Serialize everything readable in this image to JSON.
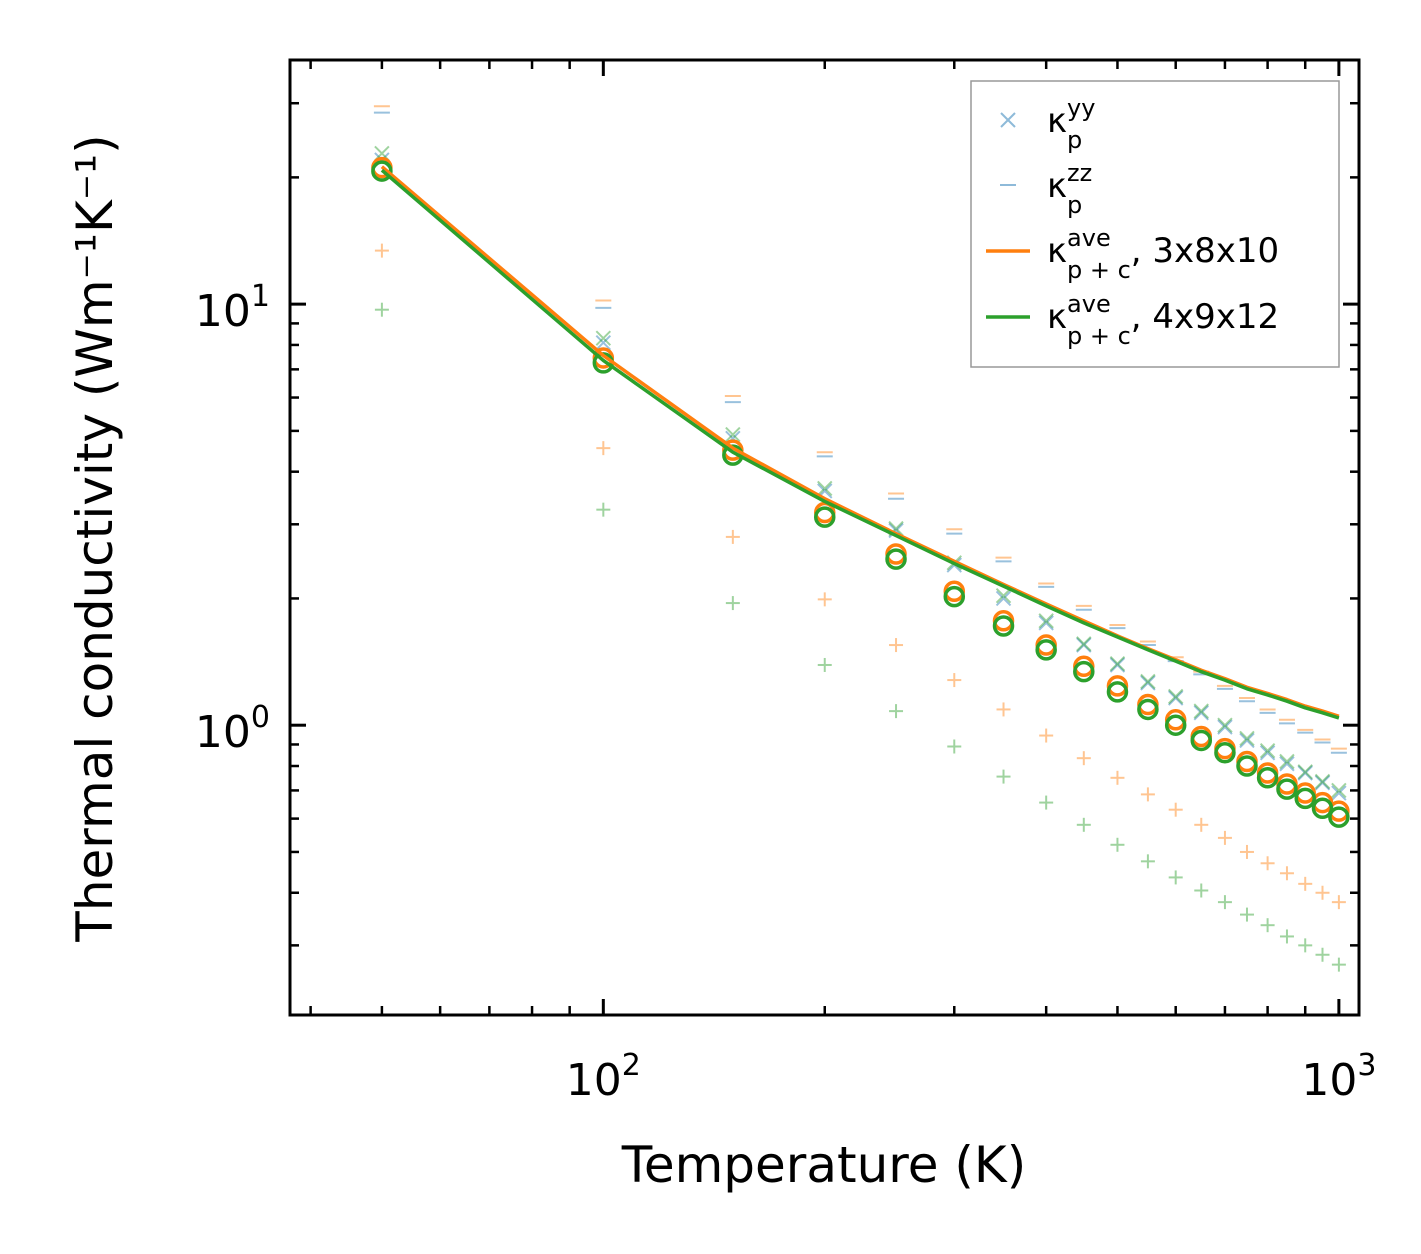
{
  "chart_data": {
    "type": "scatter",
    "title": "",
    "xlabel": "Temperature (K)",
    "ylabel": "Thermal conductivity (Wm⁻¹K⁻¹)",
    "xscale": "log",
    "yscale": "log",
    "xlim": [
      37.5,
      1065
    ],
    "ylim": [
      0.205,
      38
    ],
    "x_ticks": [
      {
        "base": "10",
        "exp": "2",
        "value": 100
      },
      {
        "base": "10",
        "exp": "3",
        "value": 1000
      }
    ],
    "y_ticks": [
      {
        "base": "10",
        "exp": "0",
        "value": 1
      },
      {
        "base": "10",
        "exp": "1",
        "value": 10
      }
    ],
    "temperatures": [
      50,
      100,
      150,
      200,
      250,
      300,
      350,
      400,
      450,
      500,
      550,
      600,
      650,
      700,
      750,
      800,
      850,
      900,
      950,
      1000
    ],
    "series": [
      {
        "name": "kappa_p_yy_3x8x10",
        "marker": "x",
        "color": "#1f77b4",
        "opacity": 0.45,
        "values": [
          22.0,
          8.1,
          4.8,
          3.6,
          2.9,
          2.4,
          2.0,
          1.75,
          1.55,
          1.39,
          1.26,
          1.16,
          1.07,
          0.99,
          0.92,
          0.86,
          0.81,
          0.77,
          0.73,
          0.69
        ]
      },
      {
        "name": "kappa_p_yy_4x9x12",
        "marker": "x",
        "color": "#2ca02c",
        "opacity": 0.45,
        "values": [
          22.8,
          8.3,
          4.9,
          3.65,
          2.93,
          2.43,
          2.03,
          1.77,
          1.56,
          1.4,
          1.27,
          1.17,
          1.08,
          1.0,
          0.93,
          0.87,
          0.82,
          0.775,
          0.735,
          0.7
        ]
      },
      {
        "name": "kappa_p_zz_3x8x10",
        "marker": "_",
        "color": "#1f77b4",
        "opacity": 0.45,
        "values": [
          28.5,
          9.8,
          5.85,
          4.35,
          3.45,
          2.85,
          2.45,
          2.13,
          1.88,
          1.7,
          1.55,
          1.42,
          1.32,
          1.22,
          1.14,
          1.07,
          1.01,
          0.96,
          0.91,
          0.86
        ]
      },
      {
        "name": "kappa_p_zz_4x9x12",
        "marker": "_",
        "color": "#ff7f0e",
        "opacity": 0.45,
        "values": [
          29.5,
          10.2,
          6.05,
          4.45,
          3.55,
          2.92,
          2.5,
          2.17,
          1.92,
          1.73,
          1.58,
          1.45,
          1.34,
          1.24,
          1.16,
          1.09,
          1.03,
          0.975,
          0.925,
          0.88
        ]
      },
      {
        "name": "kappa_c_3x8x10",
        "marker": "+",
        "color": "#ff7f0e",
        "opacity": 0.45,
        "values": [
          13.4,
          4.55,
          2.8,
          1.99,
          1.55,
          1.28,
          1.09,
          0.945,
          0.835,
          0.75,
          0.685,
          0.63,
          0.58,
          0.54,
          0.5,
          0.47,
          0.445,
          0.42,
          0.4,
          0.38
        ]
      },
      {
        "name": "kappa_c_4x9x12",
        "marker": "+",
        "color": "#2ca02c",
        "opacity": 0.45,
        "values": [
          9.7,
          3.25,
          1.95,
          1.39,
          1.08,
          0.89,
          0.755,
          0.655,
          0.58,
          0.52,
          0.475,
          0.435,
          0.405,
          0.38,
          0.355,
          0.335,
          0.315,
          0.3,
          0.285,
          0.27
        ]
      },
      {
        "name": "kappa_ave_circles_3x8x10",
        "marker": "o",
        "color": "#ff7f0e",
        "opacity": 1,
        "values": [
          21.1,
          7.45,
          4.5,
          3.2,
          2.55,
          2.08,
          1.77,
          1.55,
          1.38,
          1.24,
          1.12,
          1.03,
          0.94,
          0.88,
          0.82,
          0.77,
          0.725,
          0.69,
          0.655,
          0.625
        ]
      },
      {
        "name": "kappa_ave_circles_4x9x12",
        "marker": "o",
        "color": "#2ca02c",
        "opacity": 1,
        "values": [
          20.7,
          7.25,
          4.38,
          3.12,
          2.48,
          2.02,
          1.72,
          1.51,
          1.34,
          1.2,
          1.09,
          1.0,
          0.92,
          0.86,
          0.8,
          0.75,
          0.705,
          0.67,
          0.635,
          0.605
        ]
      },
      {
        "name": "kappa_p+c_ave_3x8x10_line",
        "marker": "line",
        "color": "#ff7f0e",
        "opacity": 1,
        "values": [
          21.2,
          7.55,
          4.55,
          3.45,
          2.85,
          2.45,
          2.16,
          1.94,
          1.77,
          1.63,
          1.52,
          1.43,
          1.35,
          1.29,
          1.23,
          1.19,
          1.15,
          1.11,
          1.08,
          1.05
        ]
      },
      {
        "name": "kappa_p+c_ave_4x9x12_line",
        "marker": "line",
        "color": "#2ca02c",
        "opacity": 1,
        "values": [
          20.8,
          7.35,
          4.45,
          3.4,
          2.82,
          2.42,
          2.14,
          1.92,
          1.75,
          1.62,
          1.51,
          1.42,
          1.34,
          1.28,
          1.22,
          1.18,
          1.14,
          1.1,
          1.07,
          1.04
        ]
      }
    ],
    "legend": {
      "position": "top-right",
      "entries": [
        {
          "symbol": "κ",
          "sup": "yy",
          "sub": "p",
          "suffix": "",
          "marker": "x",
          "color": "#1f77b4"
        },
        {
          "symbol": "κ",
          "sup": "zz",
          "sub": "p",
          "suffix": "",
          "marker": "_",
          "color": "#1f77b4"
        },
        {
          "symbol": "κ",
          "sup": "ave",
          "sub": "p + c",
          "suffix": ", 3x8x10",
          "marker": "line",
          "color": "#ff7f0e"
        },
        {
          "symbol": "κ",
          "sup": "ave",
          "sub": "p + c",
          "suffix": ", 4x9x12",
          "marker": "line",
          "color": "#2ca02c"
        }
      ]
    }
  }
}
